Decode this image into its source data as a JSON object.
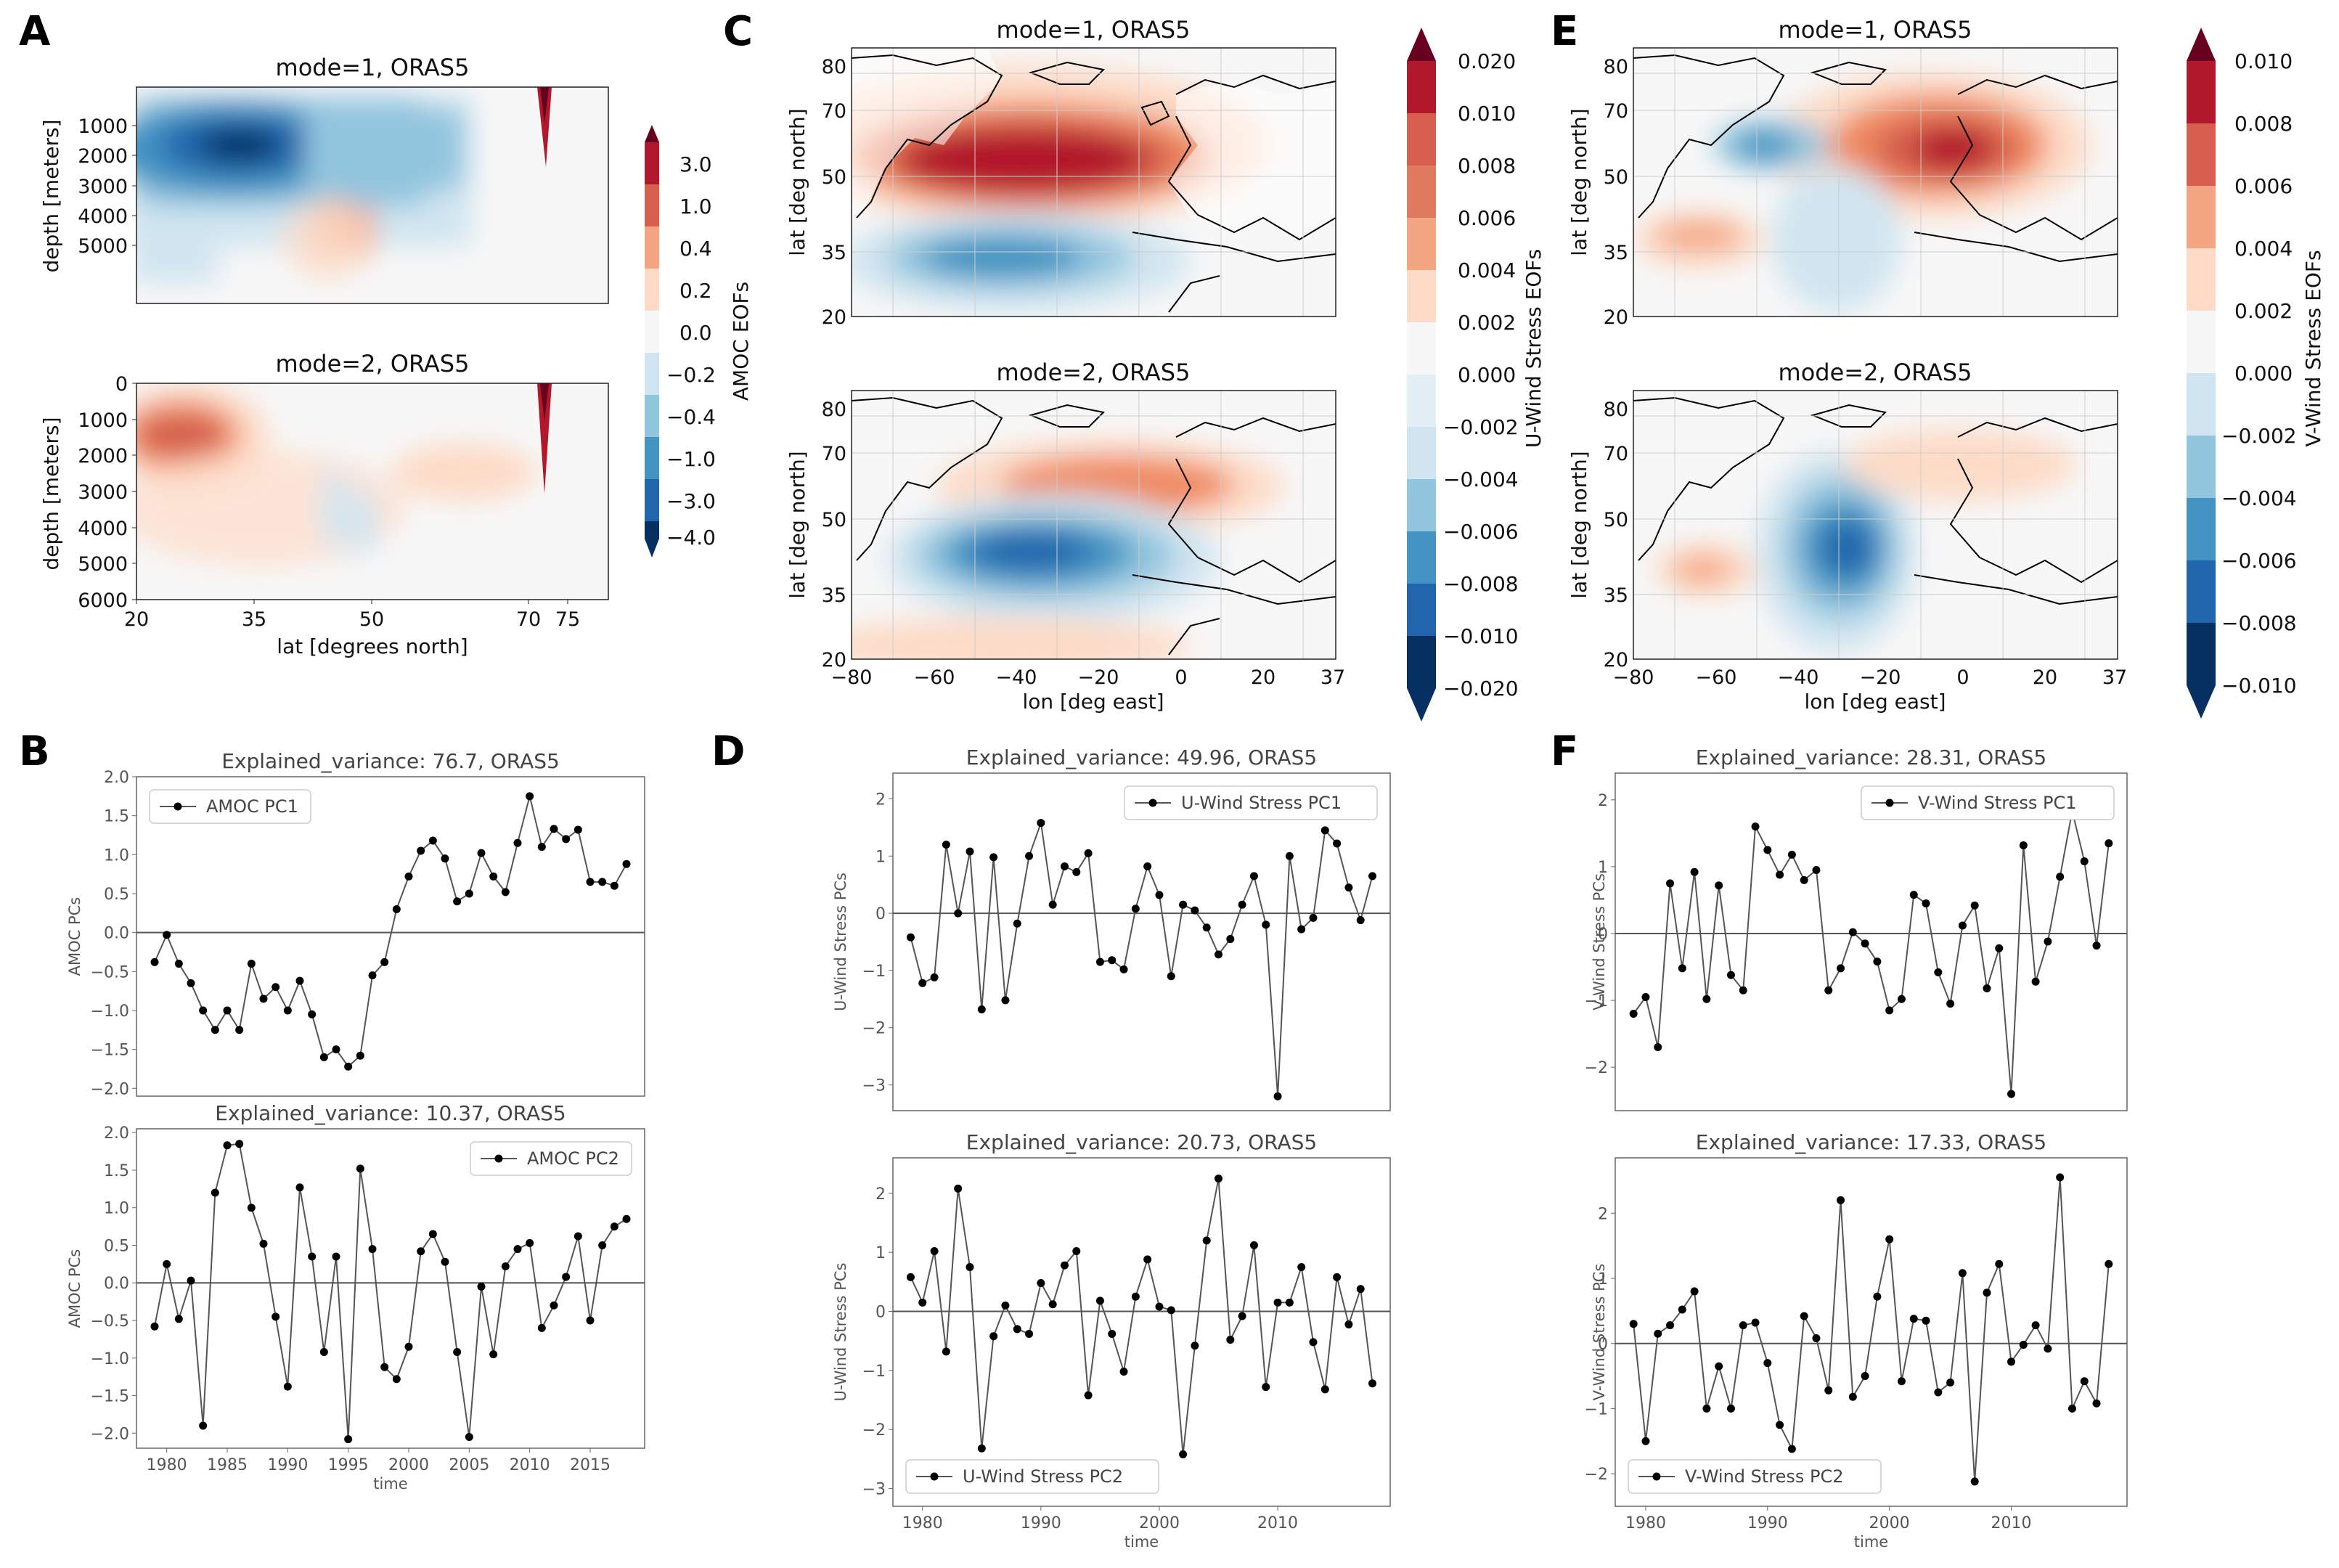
{
  "figure": {
    "panel_labels": [
      "A",
      "B",
      "C",
      "D",
      "E",
      "F"
    ]
  },
  "colors": {
    "deep_red": "#67001f",
    "red": "#b2182b",
    "light_red": "#ef8a62",
    "pale_red": "#fddbc7",
    "neutral": "#f7f7f7",
    "pale_blue": "#d1e5f0",
    "light_blue": "#67a9cf",
    "blue": "#2166ac",
    "deep_blue": "#053061",
    "series_line": "#555555",
    "marker": "#000000"
  },
  "panelA": {
    "top_title": "mode=1, ORAS5",
    "bottom_title": "mode=2, ORAS5",
    "ylabel": "depth [meters]",
    "xlabel": "lat [degrees north]",
    "top_yticks": [
      "1000",
      "2000",
      "3000",
      "4000",
      "5000"
    ],
    "bottom_yticks": [
      "0",
      "1000",
      "2000",
      "3000",
      "4000",
      "5000",
      "6000"
    ],
    "xticks": [
      "20",
      "35",
      "50",
      "70",
      "75"
    ],
    "colorbar": {
      "label": "AMOC EOFs",
      "ticks": [
        "3.0",
        "1.0",
        "0.4",
        "0.2",
        "0.0",
        "−0.2",
        "−0.4",
        "−1.0",
        "−3.0",
        "−4.0"
      ]
    }
  },
  "panelC": {
    "top_title": "mode=1, ORAS5",
    "bottom_title": "mode=2, ORAS5",
    "ylabel": "lat [deg north]",
    "xlabel": "lon [deg east]",
    "yticks": [
      "80",
      "70",
      "50",
      "35",
      "20"
    ],
    "xticks": [
      "−80",
      "−60",
      "−40",
      "−20",
      "0",
      "20",
      "37"
    ],
    "colorbar": {
      "label": "U-Wind Stress EOFs",
      "ticks": [
        "0.020",
        "0.010",
        "0.008",
        "0.006",
        "0.004",
        "0.002",
        "0.000",
        "−0.002",
        "−0.004",
        "−0.006",
        "−0.008",
        "−0.010",
        "−0.020"
      ]
    }
  },
  "panelE": {
    "top_title": "mode=1, ORAS5",
    "bottom_title": "mode=2, ORAS5",
    "ylabel": "lat [deg north]",
    "xlabel": "lon [deg east]",
    "yticks": [
      "80",
      "70",
      "50",
      "35",
      "20"
    ],
    "xticks": [
      "−80",
      "−60",
      "−40",
      "−20",
      "0",
      "20",
      "37"
    ],
    "colorbar": {
      "label": "V-Wind Stress EOFs",
      "ticks": [
        "0.010",
        "0.008",
        "0.006",
        "0.004",
        "0.002",
        "0.000",
        "−0.002",
        "−0.004",
        "−0.006",
        "−0.008",
        "−0.010"
      ]
    }
  },
  "chart_data": [
    {
      "id": "B1",
      "type": "line",
      "title": "Explained_variance: 76.7, ORAS5",
      "ylabel": "AMOC PCs",
      "xlabel": "",
      "legend": "AMOC PC1",
      "legend_pos": "top-left",
      "x_start": 1979,
      "values": [
        -0.38,
        -0.03,
        -0.4,
        -0.65,
        -1.0,
        -1.25,
        -1.0,
        -1.25,
        -0.4,
        -0.85,
        -0.7,
        -1.0,
        -0.62,
        -1.05,
        -1.6,
        -1.5,
        -1.72,
        -1.58,
        -0.55,
        -0.38,
        0.3,
        0.72,
        1.05,
        1.18,
        0.95,
        0.4,
        0.5,
        1.02,
        0.72,
        0.52,
        1.15,
        1.75,
        1.1,
        1.33,
        1.2,
        1.32,
        0.65,
        0.65,
        0.6,
        0.88
      ],
      "ylim": [
        -2.1,
        2.0
      ],
      "yticks": [
        2.0,
        1.5,
        1.0,
        0.5,
        0.0,
        -0.5,
        -1.0,
        -1.5,
        -2.0
      ],
      "ytick_labels": [
        "2.0",
        "1.5",
        "1.0",
        "0.5",
        "0.0",
        "−0.5",
        "−1.0",
        "−1.5",
        "−2.0"
      ],
      "xticks": [],
      "xtick_labels": []
    },
    {
      "id": "B2",
      "type": "line",
      "title": "Explained_variance: 10.37, ORAS5",
      "ylabel": "AMOC PCs",
      "xlabel": "time",
      "legend": "AMOC PC2",
      "legend_pos": "top-right",
      "x_start": 1979,
      "values": [
        -0.58,
        0.25,
        -0.48,
        0.03,
        -1.9,
        1.2,
        1.83,
        1.85,
        1.0,
        0.52,
        -0.45,
        -1.38,
        1.27,
        0.35,
        -0.92,
        0.35,
        -2.08,
        1.52,
        0.45,
        -1.12,
        -1.28,
        -0.85,
        0.42,
        0.65,
        0.28,
        -0.92,
        -2.05,
        -0.05,
        -0.95,
        0.22,
        0.45,
        0.53,
        -0.6,
        -0.3,
        0.08,
        0.62,
        -0.5,
        0.5,
        0.75,
        0.85
      ],
      "ylim": [
        -2.2,
        2.05
      ],
      "yticks": [
        2.0,
        1.5,
        1.0,
        0.5,
        0.0,
        -0.5,
        -1.0,
        -1.5,
        -2.0
      ],
      "ytick_labels": [
        "2.0",
        "1.5",
        "1.0",
        "0.5",
        "0.0",
        "−0.5",
        "−1.0",
        "−1.5",
        "−2.0"
      ],
      "xticks": [
        1980,
        1985,
        1990,
        1995,
        2000,
        2005,
        2010,
        2015
      ],
      "xtick_labels": [
        "1980",
        "1985",
        "1990",
        "1995",
        "2000",
        "2005",
        "2010",
        "2015"
      ]
    },
    {
      "id": "D1",
      "type": "line",
      "title": "Explained_variance: 49.96, ORAS5",
      "ylabel": "U-Wind Stress PCs",
      "xlabel": "",
      "legend": "U-Wind Stress PC1",
      "legend_pos": "top-right",
      "x_start": 1979,
      "values": [
        -0.42,
        -1.22,
        -1.12,
        1.2,
        0.0,
        1.08,
        -1.68,
        0.98,
        -1.52,
        -0.18,
        1.0,
        1.58,
        0.15,
        0.82,
        0.72,
        1.05,
        -0.85,
        -0.82,
        -0.98,
        0.08,
        0.82,
        0.32,
        -1.1,
        0.15,
        0.05,
        -0.25,
        -0.72,
        -0.45,
        0.15,
        0.65,
        -0.2,
        -3.2,
        1.0,
        -0.28,
        -0.08,
        1.45,
        1.22,
        0.45,
        -0.12,
        0.65
      ],
      "ylim": [
        -3.45,
        2.45
      ],
      "yticks": [
        2,
        1,
        0,
        -1,
        -2,
        -3
      ],
      "ytick_labels": [
        "2",
        "1",
        "0",
        "−1",
        "−2",
        "−3"
      ],
      "xticks": [],
      "xtick_labels": []
    },
    {
      "id": "D2",
      "type": "line",
      "title": "Explained_variance: 20.73, ORAS5",
      "ylabel": "U-Wind Stress PCs",
      "xlabel": "time",
      "legend": "U-Wind Stress PC2",
      "legend_pos": "bottom-left",
      "x_start": 1979,
      "values": [
        0.58,
        0.15,
        1.02,
        -0.68,
        2.08,
        0.75,
        -2.32,
        -0.42,
        0.1,
        -0.3,
        -0.38,
        0.48,
        0.12,
        0.78,
        1.02,
        -1.42,
        0.18,
        -0.38,
        -1.02,
        0.25,
        0.88,
        0.08,
        0.02,
        -2.42,
        -0.58,
        1.2,
        2.25,
        -0.48,
        -0.08,
        1.12,
        -1.28,
        0.15,
        0.15,
        0.75,
        -0.52,
        -1.32,
        0.58,
        -0.22,
        0.38,
        -1.22
      ],
      "ylim": [
        -3.3,
        2.6
      ],
      "yticks": [
        2,
        1,
        0,
        -1,
        -2,
        -3
      ],
      "ytick_labels": [
        "2",
        "1",
        "0",
        "−1",
        "−2",
        "−3"
      ],
      "xticks": [
        1980,
        1990,
        2000,
        2010
      ],
      "xtick_labels": [
        "1980",
        "1990",
        "2000",
        "2010"
      ]
    },
    {
      "id": "F1",
      "type": "line",
      "title": "Explained_variance: 28.31, ORAS5",
      "ylabel": "V-Wind Stress PCs",
      "xlabel": "",
      "legend": "V-Wind Stress PC1",
      "legend_pos": "top-right",
      "x_start": 1979,
      "values": [
        -1.2,
        -0.95,
        -1.7,
        0.75,
        -0.52,
        0.92,
        -0.98,
        0.72,
        -0.62,
        -0.85,
        1.6,
        1.25,
        0.88,
        1.18,
        0.8,
        0.95,
        -0.85,
        -0.52,
        0.02,
        -0.15,
        -0.42,
        -1.15,
        -0.98,
        0.58,
        0.45,
        -0.58,
        -1.05,
        0.12,
        0.42,
        -0.82,
        -0.22,
        -2.4,
        1.32,
        -0.72,
        -0.12,
        0.85,
        1.83,
        1.08,
        -0.18,
        1.35
      ],
      "ylim": [
        -2.65,
        2.4
      ],
      "yticks": [
        2,
        1,
        0,
        -1,
        -2
      ],
      "ytick_labels": [
        "2",
        "1",
        "0",
        "−1",
        "−2"
      ],
      "xticks": [],
      "xtick_labels": []
    },
    {
      "id": "F2",
      "type": "line",
      "title": "Explained_variance: 17.33, ORAS5",
      "ylabel": "V-Wind Stress PCs",
      "xlabel": "time",
      "legend": "V-Wind Stress PC2",
      "legend_pos": "bottom-left",
      "x_start": 1979,
      "values": [
        0.3,
        -1.5,
        0.15,
        0.28,
        0.52,
        0.8,
        -1.0,
        -0.35,
        -1.0,
        0.28,
        0.32,
        -0.3,
        -1.25,
        -1.62,
        0.42,
        0.08,
        -0.72,
        2.2,
        -0.82,
        -0.5,
        0.72,
        1.6,
        -0.58,
        0.38,
        0.35,
        -0.75,
        -0.6,
        1.08,
        -2.12,
        0.78,
        1.22,
        -0.28,
        -0.02,
        0.28,
        -0.08,
        2.55,
        -1.0,
        -0.58,
        -0.92,
        1.22
      ],
      "ylim": [
        -2.5,
        2.85
      ],
      "yticks": [
        2,
        1,
        0,
        -1,
        -2
      ],
      "ytick_labels": [
        "2",
        "1",
        "0",
        "−1",
        "−2"
      ],
      "xticks": [
        1980,
        1990,
        2000,
        2010
      ],
      "xtick_labels": [
        "1980",
        "1990",
        "2000",
        "2010"
      ]
    }
  ]
}
